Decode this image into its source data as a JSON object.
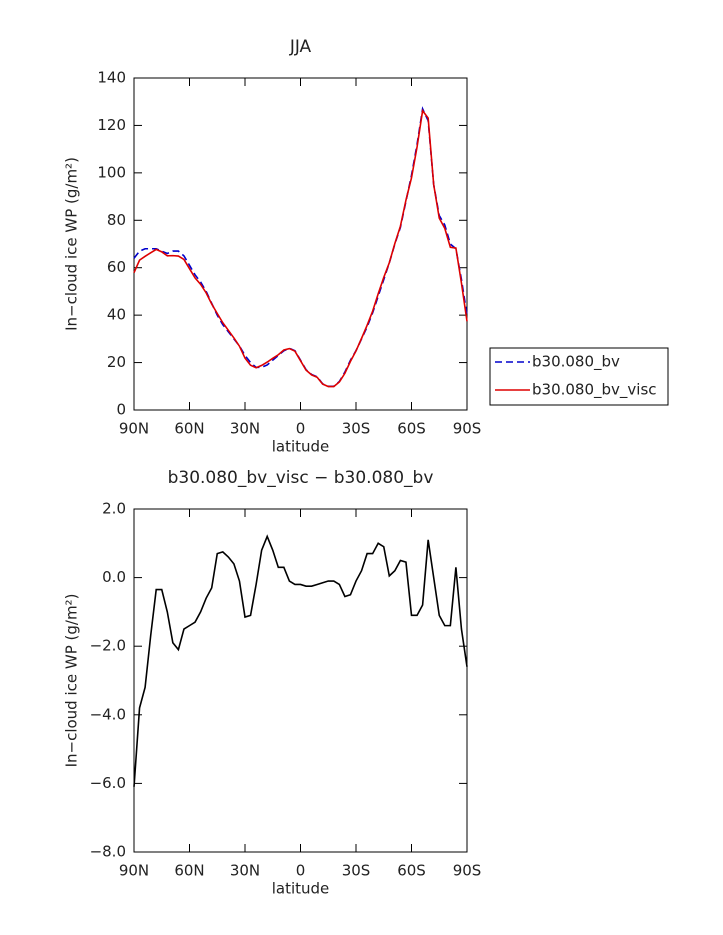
{
  "chart_data": [
    {
      "type": "line",
      "title": "JJA",
      "xlabel": "latitude",
      "ylabel": "In−cloud ice WP (g/m²)",
      "x": [
        90,
        87,
        84,
        81,
        78,
        75,
        72,
        69,
        66,
        63,
        60,
        57,
        54,
        51,
        48,
        45,
        42,
        39,
        36,
        33,
        30,
        27,
        24,
        21,
        18,
        15,
        12,
        9,
        6,
        3,
        0,
        -3,
        -6,
        -9,
        -12,
        -15,
        -18,
        -21,
        -24,
        -27,
        -30,
        -33,
        -36,
        -39,
        -42,
        -45,
        -48,
        -51,
        -54,
        -57,
        -60,
        -63,
        -66,
        -69,
        -72,
        -75,
        -78,
        -81,
        -84,
        -87,
        -90
      ],
      "series": [
        {
          "name": "b30.080_bv",
          "color": "#0000cc",
          "linestyle": "dashed",
          "values": [
            64,
            67,
            68,
            68,
            68,
            67,
            66,
            67,
            67,
            65,
            61,
            57,
            54,
            50,
            45,
            40,
            36,
            33,
            30,
            27,
            23,
            20,
            18,
            18,
            19,
            21,
            23,
            25,
            26,
            25,
            21,
            17,
            15,
            14,
            11,
            10,
            10,
            12,
            16,
            21,
            25,
            30,
            35,
            41,
            48,
            55,
            62,
            70,
            77,
            88,
            99,
            112,
            127,
            122,
            95,
            82,
            78,
            70,
            68,
            55,
            40
          ]
        },
        {
          "name": "b30.080_bv_visc",
          "color": "#dd0000",
          "linestyle": "solid",
          "values": [
            57.9,
            63.2,
            64.8,
            66.3,
            67.7,
            66.7,
            65,
            65.1,
            64.9,
            63.5,
            59.6,
            55.7,
            53,
            49.4,
            44.7,
            40.7,
            36.8,
            33.6,
            30.4,
            26.9,
            21.9,
            18.9,
            17.8,
            18.8,
            20.2,
            21.8,
            23.3,
            25.3,
            25.9,
            24.8,
            20.8,
            16.8,
            14.8,
            13.8,
            10.9,
            9.9,
            9.9,
            11.8,
            15.5,
            20.5,
            24.9,
            30.2,
            35.7,
            41.7,
            49,
            55.9,
            62.1,
            70.2,
            77.5,
            88.5,
            97.9,
            110.9,
            126.2,
            123.1,
            95,
            80.9,
            76.6,
            68.6,
            68.3,
            53.5,
            37.4
          ]
        }
      ],
      "xlim": [
        90,
        -90
      ],
      "xticks": [
        {
          "value": 90,
          "label": "90N"
        },
        {
          "value": 60,
          "label": "60N"
        },
        {
          "value": 30,
          "label": "30N"
        },
        0,
        {
          "value": -30,
          "label": "30S"
        },
        {
          "value": -60,
          "label": "60S"
        },
        {
          "value": -90,
          "label": "90S"
        }
      ],
      "ylim": [
        0,
        140
      ],
      "yticks": [
        0,
        20,
        40,
        60,
        80,
        100,
        120,
        140
      ],
      "legend": "right"
    },
    {
      "type": "line",
      "title": "b30.080_bv_visc − b30.080_bv",
      "xlabel": "latitude",
      "ylabel": "In−cloud ice WP (g/m²)",
      "x": [
        90,
        87,
        84,
        81,
        78,
        75,
        72,
        69,
        66,
        63,
        60,
        57,
        54,
        51,
        48,
        45,
        42,
        39,
        36,
        33,
        30,
        27,
        24,
        21,
        18,
        15,
        12,
        9,
        6,
        3,
        0,
        -3,
        -6,
        -9,
        -12,
        -15,
        -18,
        -21,
        -24,
        -27,
        -30,
        -33,
        -36,
        -39,
        -42,
        -45,
        -48,
        -51,
        -54,
        -57,
        -60,
        -63,
        -66,
        -69,
        -72,
        -75,
        -78,
        -81,
        -84,
        -87,
        -90
      ],
      "series": [
        {
          "color": "#000000",
          "linestyle": "solid",
          "values": [
            -6.1,
            -3.8,
            -3.2,
            -1.7,
            -0.35,
            -0.35,
            -1,
            -1.9,
            -2.1,
            -1.5,
            -1.4,
            -1.3,
            -1,
            -0.6,
            -0.3,
            0.7,
            0.75,
            0.6,
            0.4,
            -0.1,
            -1.15,
            -1.1,
            -0.2,
            0.8,
            1.2,
            0.8,
            0.3,
            0.3,
            -0.1,
            -0.2,
            -0.2,
            -0.25,
            -0.25,
            -0.2,
            -0.15,
            -0.1,
            -0.1,
            -0.2,
            -0.55,
            -0.5,
            -0.1,
            0.2,
            0.7,
            0.7,
            1,
            0.9,
            0.05,
            0.2,
            0.5,
            0.45,
            -1.1,
            -1.1,
            -0.8,
            1.1,
            0,
            -1.1,
            -1.4,
            -1.4,
            0.3,
            -1.5,
            -2.6
          ]
        }
      ],
      "xlim": [
        90,
        -90
      ],
      "xticks": [
        {
          "value": 90,
          "label": "90N"
        },
        {
          "value": 60,
          "label": "60N"
        },
        {
          "value": 30,
          "label": "30N"
        },
        0,
        {
          "value": -30,
          "label": "30S"
        },
        {
          "value": -60,
          "label": "60S"
        },
        {
          "value": -90,
          "label": "90S"
        }
      ],
      "ylim": [
        -8,
        2
      ],
      "yticks": [
        {
          "value": -8,
          "label": "−8.0"
        },
        {
          "value": -6,
          "label": "−6.0"
        },
        {
          "value": -4,
          "label": "−4.0"
        },
        {
          "value": -2,
          "label": "−2.0"
        },
        {
          "value": 0,
          "label": "0.0"
        },
        {
          "value": 2,
          "label": "2.0"
        }
      ]
    }
  ]
}
